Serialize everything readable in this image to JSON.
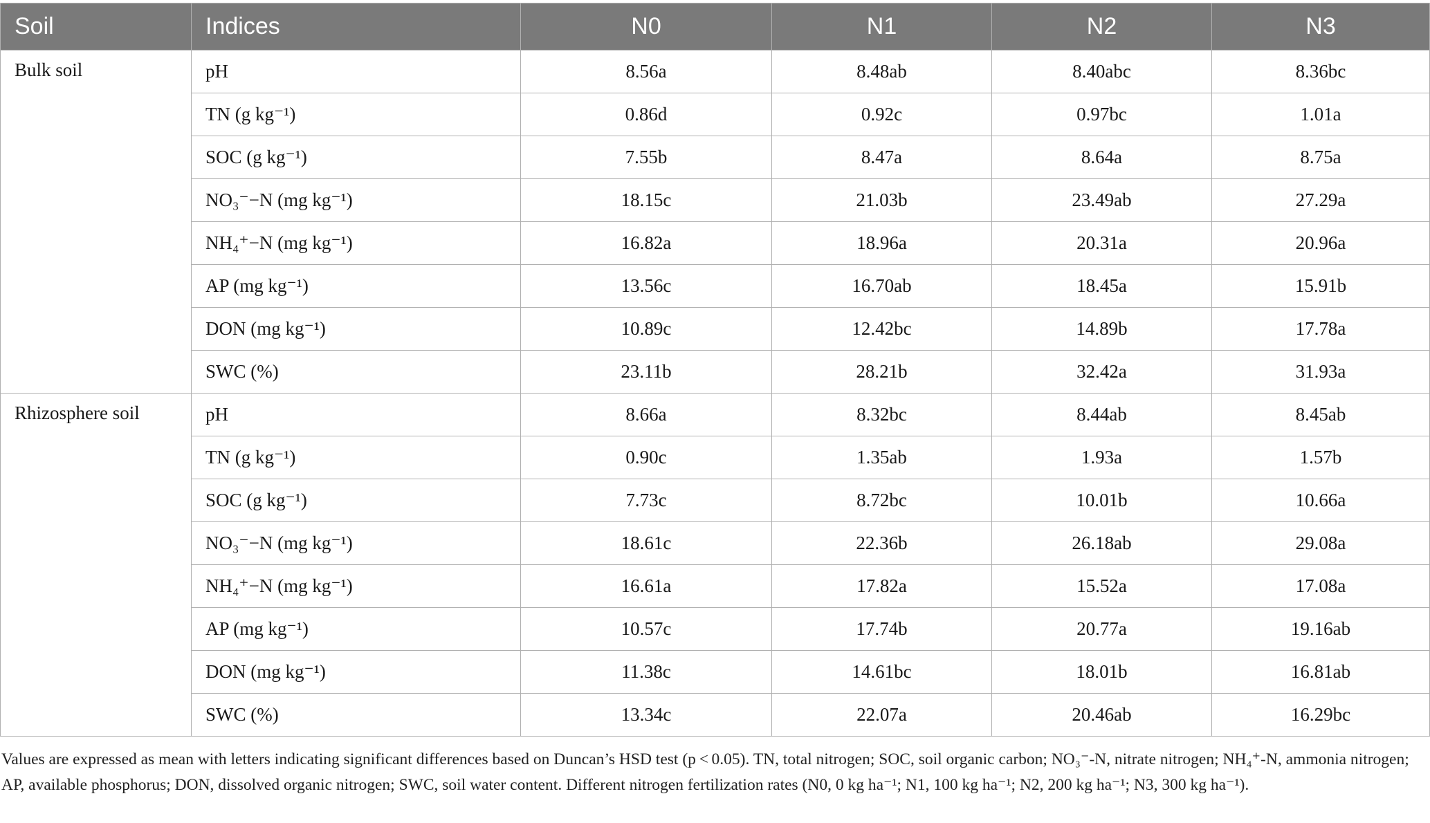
{
  "table": {
    "headers": [
      "Soil",
      "Indices",
      "N0",
      "N1",
      "N2",
      "N3"
    ],
    "groups": [
      {
        "soil": "Bulk soil",
        "rows": [
          {
            "index": "pH",
            "values": [
              "8.56a",
              "8.48ab",
              "8.40abc",
              "8.36bc"
            ]
          },
          {
            "index": "TN (g kg⁻¹)",
            "values": [
              "0.86d",
              "0.92c",
              "0.97bc",
              "1.01a"
            ]
          },
          {
            "index": "SOC (g kg⁻¹)",
            "values": [
              "7.55b",
              "8.47a",
              "8.64a",
              "8.75a"
            ]
          },
          {
            "index": "NO₃⁻−N (mg kg⁻¹)",
            "values": [
              "18.15c",
              "21.03b",
              "23.49ab",
              "27.29a"
            ]
          },
          {
            "index": "NH₄⁺−N (mg kg⁻¹)",
            "values": [
              "16.82a",
              "18.96a",
              "20.31a",
              "20.96a"
            ]
          },
          {
            "index": "AP (mg kg⁻¹)",
            "values": [
              "13.56c",
              "16.70ab",
              "18.45a",
              "15.91b"
            ]
          },
          {
            "index": "DON (mg kg⁻¹)",
            "values": [
              "10.89c",
              "12.42bc",
              "14.89b",
              "17.78a"
            ]
          },
          {
            "index": "SWC (%)",
            "values": [
              "23.11b",
              "28.21b",
              "32.42a",
              "31.93a"
            ]
          }
        ]
      },
      {
        "soil": "Rhizosphere soil",
        "rows": [
          {
            "index": "pH",
            "values": [
              "8.66a",
              "8.32bc",
              "8.44ab",
              "8.45ab"
            ]
          },
          {
            "index": "TN (g kg⁻¹)",
            "values": [
              "0.90c",
              "1.35ab",
              "1.93a",
              "1.57b"
            ]
          },
          {
            "index": "SOC (g kg⁻¹)",
            "values": [
              "7.73c",
              "8.72bc",
              "10.01b",
              "10.66a"
            ]
          },
          {
            "index": "NO₃⁻−N (mg kg⁻¹)",
            "values": [
              "18.61c",
              "22.36b",
              "26.18ab",
              "29.08a"
            ]
          },
          {
            "index": "NH₄⁺−N (mg kg⁻¹)",
            "values": [
              "16.61a",
              "17.82a",
              "15.52a",
              "17.08a"
            ]
          },
          {
            "index": "AP (mg kg⁻¹)",
            "values": [
              "10.57c",
              "17.74b",
              "20.77a",
              "19.16ab"
            ]
          },
          {
            "index": "DON (mg kg⁻¹)",
            "values": [
              "11.38c",
              "14.61bc",
              "18.01b",
              "16.81ab"
            ]
          },
          {
            "index": "SWC (%)",
            "values": [
              "13.34c",
              "22.07a",
              "20.46ab",
              "16.29bc"
            ]
          }
        ]
      }
    ]
  },
  "caption": "Values are expressed as mean with letters indicating significant differences based on Duncan’s HSD test (p < 0.05). TN, total nitrogen; SOC, soil organic carbon; NO₃⁻-N, nitrate nitrogen; NH₄⁺-N, ammonia nitrogen; AP, available phosphorus; DON, dissolved organic nitrogen; SWC, soil water content. Different nitrogen fertilization rates (N0, 0 kg ha⁻¹; N1, 100 kg ha⁻¹; N2, 200 kg ha⁻¹; N3, 300 kg ha⁻¹).",
  "colors": {
    "header_bg": "#7a7a7a",
    "header_text": "#ffffff",
    "grid": "#b0b0b0"
  }
}
